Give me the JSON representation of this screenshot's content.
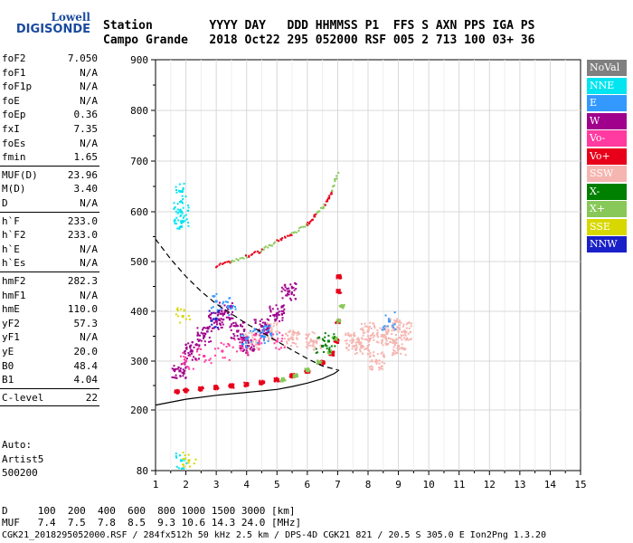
{
  "logo": {
    "top": "Lowell",
    "main": "DIGISONDE"
  },
  "header": {
    "line1": "Station        YYYY DAY   DDD HHMMSS P1  FFS S AXN PPS IGA PS",
    "line2": "Campo Grande   2018 Oct22 295 052000 RSF 005 2 713 100 03+ 36"
  },
  "params": [
    {
      "name": "foF2",
      "value": "7.050",
      "sep_after": false
    },
    {
      "name": "foF1",
      "value": "N/A",
      "sep_after": false
    },
    {
      "name": "foF1p",
      "value": "N/A",
      "sep_after": false
    },
    {
      "name": "foE",
      "value": "N/A",
      "sep_after": false
    },
    {
      "name": "foEp",
      "value": "0.36",
      "sep_after": false
    },
    {
      "name": "fxI",
      "value": "7.35",
      "sep_after": false
    },
    {
      "name": "foEs",
      "value": "N/A",
      "sep_after": false
    },
    {
      "name": "fmin",
      "value": "1.65",
      "sep_after": true
    },
    {
      "name": "MUF(D)",
      "value": "23.96",
      "sep_after": false
    },
    {
      "name": "M(D)",
      "value": "3.40",
      "sep_after": false
    },
    {
      "name": "D",
      "value": "N/A",
      "sep_after": true
    },
    {
      "name": "h`F",
      "value": "233.0",
      "sep_after": false
    },
    {
      "name": "h`F2",
      "value": "233.0",
      "sep_after": false
    },
    {
      "name": "h`E",
      "value": "N/A",
      "sep_after": false
    },
    {
      "name": "h`Es",
      "value": "N/A",
      "sep_after": true
    },
    {
      "name": "hmF2",
      "value": "282.3",
      "sep_after": false
    },
    {
      "name": "hmF1",
      "value": "N/A",
      "sep_after": false
    },
    {
      "name": "hmE",
      "value": "110.0",
      "sep_after": false
    },
    {
      "name": "yF2",
      "value": "57.3",
      "sep_after": false
    },
    {
      "name": "yF1",
      "value": "N/A",
      "sep_after": false
    },
    {
      "name": "yE",
      "value": "20.0",
      "sep_after": false
    },
    {
      "name": "B0",
      "value": "48.4",
      "sep_after": false
    },
    {
      "name": "B1",
      "value": "4.04",
      "sep_after": true
    },
    {
      "name": "C-level",
      "value": "22",
      "sep_after": true
    }
  ],
  "auto": {
    "line1": "Auto:",
    "line2": "Artist5",
    "line3": "500200"
  },
  "bottom": {
    "d_line": "D     100  200  400  600  800 1000 1500 3000 [km]",
    "muf_line": "MUF   7.4  7.5  7.8  8.5  9.3 10.6 14.3 24.0 [MHz]",
    "footer": "CGK21_2018295052000.RSF / 284fx512h 50 kHz 2.5 km / DPS-4D CGK21 821 / 20.5 S 305.0 E Ion2Png 1.3.20"
  },
  "legend": [
    {
      "label": "NoVal",
      "bg": "#808080",
      "fg": "#ffffff"
    },
    {
      "label": "NNE",
      "bg": "#00e5f0",
      "fg": "#ffffff"
    },
    {
      "label": "E",
      "bg": "#3399ff",
      "fg": "#ffffff"
    },
    {
      "label": "W",
      "bg": "#a0008c",
      "fg": "#ffffff"
    },
    {
      "label": "Vo-",
      "bg": "#ff3aa0",
      "fg": "#ffffff"
    },
    {
      "label": "Vo+",
      "bg": "#e8001a",
      "fg": "#ffffff"
    },
    {
      "label": "SSW",
      "bg": "#f5b5b0",
      "fg": "#ffffff"
    },
    {
      "label": "X-",
      "bg": "#008000",
      "fg": "#ffffff"
    },
    {
      "label": "X+",
      "bg": "#88c858",
      "fg": "#ffffff"
    },
    {
      "label": "SSE",
      "bg": "#d8d800",
      "fg": "#ffffff"
    },
    {
      "label": "NNW",
      "bg": "#1a20c8",
      "fg": "#ffffff"
    }
  ],
  "chart_data": {
    "type": "scatter",
    "title": "",
    "xlabel": "",
    "ylabel": "",
    "xlim": [
      1,
      15
    ],
    "ylim": [
      80,
      900
    ],
    "x_ticks": [
      1,
      2,
      3,
      4,
      5,
      6,
      7,
      8,
      9,
      10,
      11,
      12,
      13,
      14,
      15
    ],
    "y_ticks": [
      80,
      200,
      300,
      400,
      500,
      600,
      700,
      800,
      900
    ],
    "grid": true,
    "legend_position": "right",
    "series": [
      {
        "name": "Vo+",
        "color": "#e8001a",
        "points": [
          [
            1.7,
            237
          ],
          [
            2.0,
            240
          ],
          [
            2.5,
            243
          ],
          [
            3.0,
            246
          ],
          [
            3.5,
            249
          ],
          [
            4.0,
            252
          ],
          [
            4.5,
            256
          ],
          [
            5.0,
            262
          ],
          [
            5.5,
            270
          ],
          [
            6.0,
            280
          ],
          [
            6.5,
            297
          ],
          [
            6.8,
            315
          ],
          [
            6.95,
            340
          ],
          [
            7.0,
            380
          ],
          [
            7.05,
            440
          ],
          [
            7.05,
            470
          ]
        ]
      },
      {
        "name": "X+",
        "color": "#88c858",
        "points": [
          [
            5.2,
            262
          ],
          [
            5.6,
            270
          ],
          [
            6.0,
            282
          ],
          [
            6.4,
            298
          ],
          [
            6.7,
            318
          ],
          [
            6.9,
            345
          ],
          [
            7.05,
            380
          ],
          [
            7.15,
            410
          ]
        ]
      },
      {
        "name": "SSW",
        "color": "#f5b5b0",
        "points": [
          [
            7.5,
            340
          ],
          [
            7.8,
            330
          ],
          [
            8.0,
            360
          ],
          [
            8.3,
            300
          ],
          [
            8.5,
            350
          ],
          [
            8.8,
            370
          ],
          [
            9.0,
            330
          ],
          [
            9.2,
            360
          ],
          [
            4.2,
            340
          ],
          [
            4.8,
            360
          ],
          [
            5.5,
            345
          ],
          [
            6.2,
            340
          ]
        ]
      },
      {
        "name": "W",
        "color": "#a0008c",
        "points": [
          [
            1.8,
            280
          ],
          [
            2.2,
            320
          ],
          [
            2.6,
            350
          ],
          [
            3.0,
            380
          ],
          [
            3.3,
            400
          ],
          [
            3.7,
            360
          ],
          [
            4.0,
            330
          ],
          [
            4.5,
            370
          ],
          [
            5.0,
            395
          ],
          [
            5.4,
            440
          ]
        ]
      },
      {
        "name": "Vo-",
        "color": "#ff3aa0",
        "points": [
          [
            2.0,
            300
          ],
          [
            2.6,
            310
          ],
          [
            3.2,
            320
          ],
          [
            3.8,
            330
          ],
          [
            4.4,
            335
          ],
          [
            5.0,
            340
          ]
        ]
      },
      {
        "name": "NNE",
        "color": "#00e5f0",
        "points": [
          [
            1.85,
            640
          ],
          [
            1.85,
            620
          ],
          [
            1.85,
            600
          ],
          [
            1.85,
            580
          ],
          [
            1.85,
            570
          ],
          [
            1.85,
            100
          ]
        ]
      },
      {
        "name": "E",
        "color": "#3399ff",
        "points": [
          [
            3.0,
            420
          ],
          [
            3.4,
            410
          ],
          [
            4.0,
            345
          ],
          [
            4.5,
            350
          ],
          [
            4.8,
            355
          ],
          [
            8.7,
            380
          ]
        ]
      },
      {
        "name": "X-",
        "color": "#008000",
        "points": [
          [
            6.5,
            330
          ],
          [
            6.7,
            340
          ]
        ]
      },
      {
        "name": "SSE",
        "color": "#d8d800",
        "points": [
          [
            1.9,
            390
          ],
          [
            2.1,
            100
          ]
        ]
      },
      {
        "name": "NNW",
        "color": "#1a20c8",
        "points": [
          [
            3.0,
            385
          ]
        ]
      }
    ],
    "trace_upper": {
      "name": "F2 X-trace",
      "color": "#e8001a",
      "points": [
        [
          3.0,
          490
        ],
        [
          3.5,
          500
        ],
        [
          4.0,
          510
        ],
        [
          4.5,
          522
        ],
        [
          5.0,
          540
        ],
        [
          5.5,
          555
        ],
        [
          6.0,
          575
        ],
        [
          6.3,
          595
        ],
        [
          6.6,
          615
        ],
        [
          6.8,
          640
        ],
        [
          7.0,
          675
        ]
      ]
    },
    "profile_solid": {
      "color": "#000000",
      "points": [
        [
          1.0,
          210
        ],
        [
          2.0,
          222
        ],
        [
          3.0,
          230
        ],
        [
          4.0,
          236
        ],
        [
          5.0,
          242
        ],
        [
          5.5,
          248
        ],
        [
          6.0,
          255
        ],
        [
          6.5,
          264
        ],
        [
          6.9,
          275
        ],
        [
          7.05,
          282
        ]
      ]
    },
    "profile_dashed": {
      "color": "#000000",
      "points": [
        [
          1.0,
          545
        ],
        [
          1.5,
          505
        ],
        [
          2.0,
          470
        ],
        [
          2.5,
          440
        ],
        [
          3.0,
          415
        ],
        [
          3.5,
          395
        ],
        [
          4.0,
          375
        ],
        [
          4.5,
          358
        ],
        [
          5.0,
          340
        ],
        [
          5.5,
          322
        ],
        [
          6.0,
          305
        ],
        [
          6.5,
          290
        ],
        [
          7.0,
          282
        ]
      ]
    }
  }
}
